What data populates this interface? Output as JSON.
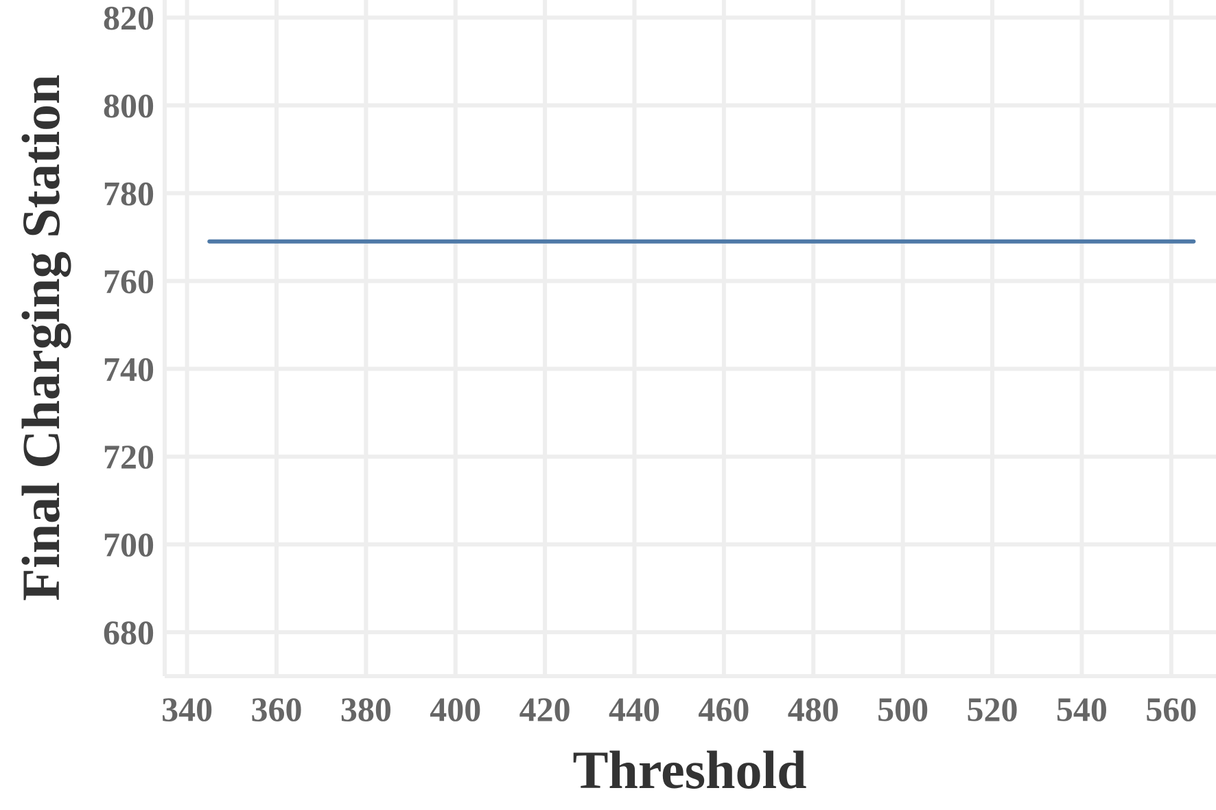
{
  "chart_data": {
    "type": "line",
    "title": "",
    "xlabel": "Threshold",
    "ylabel": "Final Charging Station",
    "xlim": [
      335,
      570
    ],
    "ylim": [
      670,
      824
    ],
    "xticks": [
      340,
      360,
      380,
      400,
      420,
      440,
      460,
      480,
      500,
      520,
      540,
      560
    ],
    "yticks": [
      680,
      700,
      720,
      740,
      760,
      780,
      800,
      820
    ],
    "grid": true,
    "series": [
      {
        "color": "#4e79a7",
        "x": [
          345,
          565
        ],
        "y": [
          769,
          769
        ]
      }
    ]
  }
}
